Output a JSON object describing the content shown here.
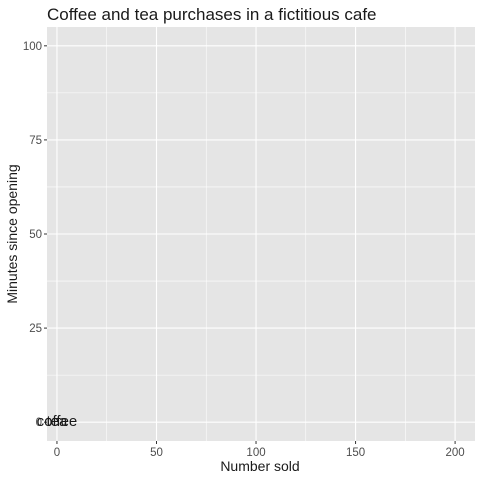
{
  "chart_data": {
    "type": "scatter",
    "title": "Coffee and tea purchases in a fictitious cafe",
    "xlabel": "Number sold",
    "ylabel": "Minutes since opening",
    "xlim": [
      -5,
      210
    ],
    "ylim": [
      -5,
      105
    ],
    "x_ticks": [
      0,
      50,
      100,
      150,
      200
    ],
    "y_ticks": [
      0,
      25,
      50,
      75,
      100
    ],
    "x_ticks_minor": [
      25,
      75,
      125,
      175
    ],
    "y_ticks_minor": [
      12.5,
      37.5,
      62.5,
      87.5
    ],
    "grid": true,
    "legend": "none",
    "colors": {
      "panel": "#e5e5e5",
      "grid": "#ffffff",
      "tick": "#333333"
    },
    "series": [
      {
        "name": "coffee",
        "points": [
          [
            0,
            0
          ]
        ]
      },
      {
        "name": "tea",
        "points": [
          [
            0,
            0
          ]
        ]
      }
    ]
  }
}
